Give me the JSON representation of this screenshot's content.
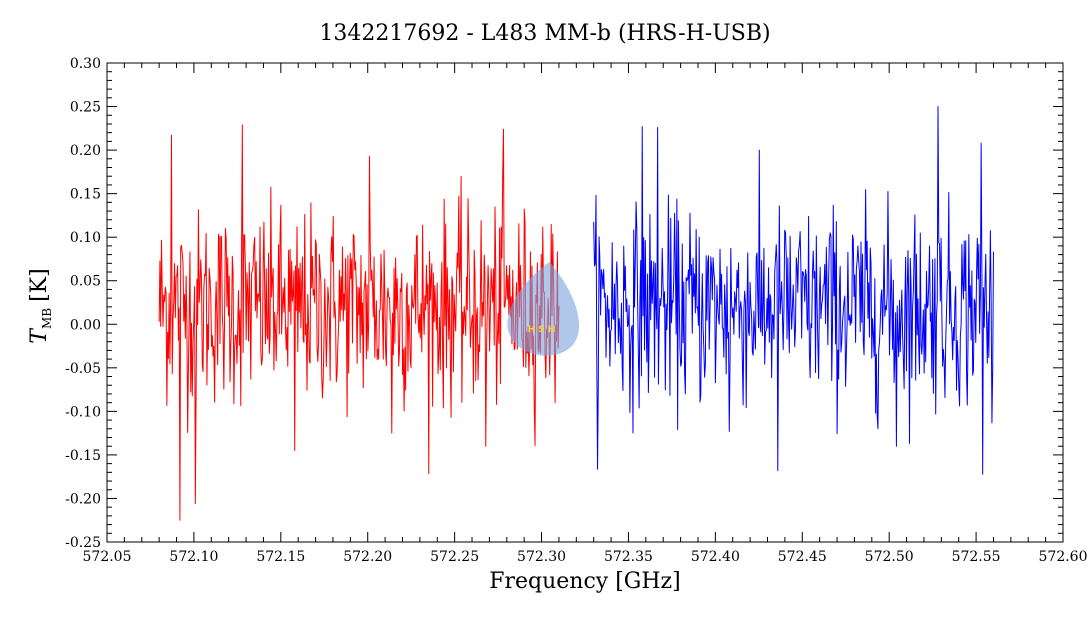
{
  "chart_data": {
    "type": "line",
    "title": "1342217692 - L483 MM-b (HRS-H-USB)",
    "xlabel": "Frequency [GHz]",
    "ylabel_symbol": "T",
    "ylabel_subscript": "MB",
    "ylabel_unit": "[K]",
    "xlim": [
      572.05,
      572.6
    ],
    "ylim": [
      -0.25,
      0.3
    ],
    "x_ticks": [
      "572.05",
      "572.10",
      "572.15",
      "572.20",
      "572.25",
      "572.30",
      "572.35",
      "572.40",
      "572.45",
      "572.50",
      "572.55",
      "572.60"
    ],
    "y_ticks": [
      "-0.25",
      "-0.20",
      "-0.15",
      "-0.10",
      "-0.05",
      "0.00",
      "0.05",
      "0.10",
      "0.15",
      "0.20",
      "0.25",
      "0.30"
    ],
    "grid": false,
    "series": [
      {
        "color": "#ff0000",
        "x_range": [
          572.08,
          572.31
        ],
        "points": 520,
        "mean": 0.02,
        "std": 0.055,
        "extremes": [
          {
            "x": 572.087,
            "y": 0.217
          },
          {
            "x": 572.092,
            "y": -0.225
          },
          {
            "x": 572.101,
            "y": -0.206
          },
          {
            "x": 572.128,
            "y": 0.229
          },
          {
            "x": 572.158,
            "y": -0.145
          },
          {
            "x": 572.201,
            "y": 0.193
          },
          {
            "x": 572.278,
            "y": 0.224
          },
          {
            "x": 572.268,
            "y": -0.14
          },
          {
            "x": 572.214,
            "y": -0.125
          }
        ]
      },
      {
        "color": "#0000ff",
        "x_range": [
          572.33,
          572.56
        ],
        "points": 520,
        "mean": 0.02,
        "std": 0.055,
        "extremes": [
          {
            "x": 572.358,
            "y": 0.227
          },
          {
            "x": 572.367,
            "y": 0.226
          },
          {
            "x": 572.436,
            "y": -0.168
          },
          {
            "x": 572.528,
            "y": 0.25
          },
          {
            "x": 572.553,
            "y": 0.208
          },
          {
            "x": 572.554,
            "y": -0.172
          },
          {
            "x": 572.408,
            "y": -0.123
          },
          {
            "x": 572.504,
            "y": -0.14
          }
        ]
      }
    ]
  },
  "watermark": {
    "text": "H S H",
    "color": "#7da4dd"
  }
}
